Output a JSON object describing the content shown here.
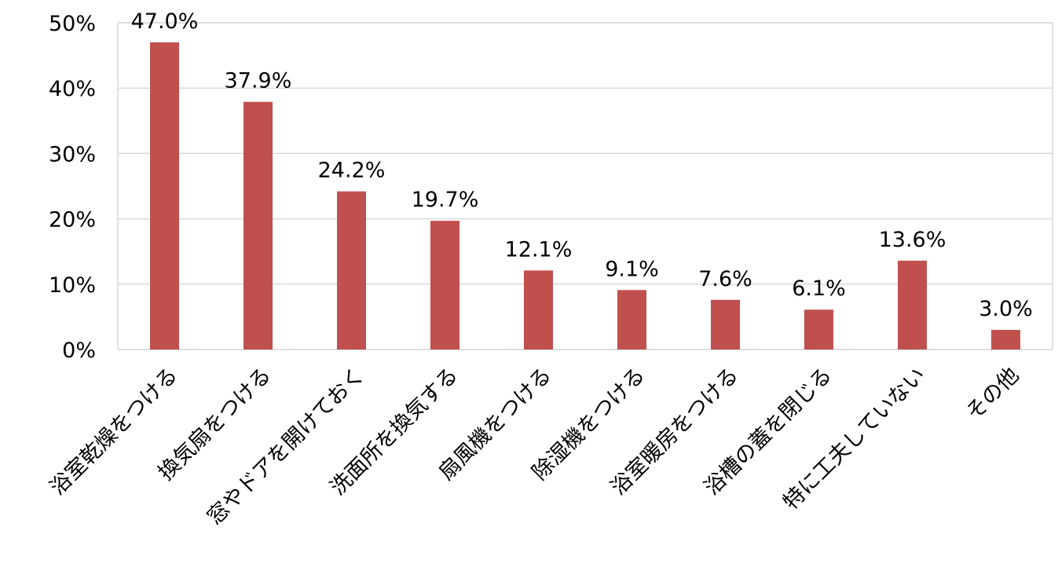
{
  "chart_data": {
    "type": "bar",
    "title": "",
    "xlabel": "",
    "ylabel": "",
    "ylim": [
      0,
      50
    ],
    "yticks": [
      0,
      10,
      20,
      30,
      40,
      50
    ],
    "ytick_labels": [
      "0%",
      "10%",
      "20%",
      "30%",
      "40%",
      "50%"
    ],
    "grid": true,
    "legend": "none",
    "categories": [
      "浴室乾燥をつける",
      "換気扇をつける",
      "窓やドアを開けておく",
      "洗面所を換気する",
      "扇風機をつける",
      "除湿機をつける",
      "浴室暖房をつける",
      "浴槽の蓋を閉じる",
      "特に工夫していない",
      "その他"
    ],
    "values": [
      47.0,
      37.9,
      24.2,
      19.7,
      12.1,
      9.1,
      7.6,
      6.1,
      13.6,
      3.0
    ],
    "data_labels": [
      "47.0%",
      "37.9%",
      "24.2%",
      "19.7%",
      "12.1%",
      "9.1%",
      "7.6%",
      "6.1%",
      "13.6%",
      "3.0%"
    ],
    "bar_color": "#c0504d",
    "grid_color": "#d9d9d9"
  }
}
